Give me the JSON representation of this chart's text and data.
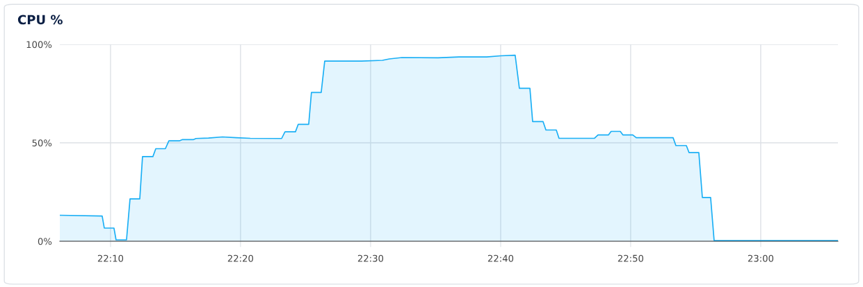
{
  "chart_data": {
    "type": "area",
    "title": "CPU %",
    "x": [
      22.1017,
      22.156,
      22.1587,
      22.1711,
      22.1738,
      22.1872,
      22.1917,
      22.2042,
      22.2077,
      22.221,
      22.2247,
      22.237,
      22.2415,
      22.2548,
      22.2585,
      22.2727,
      22.2763,
      22.2923,
      22.3102,
      22.328,
      22.3458,
      22.386,
      22.3903,
      22.4037,
      22.4073,
      22.4207,
      22.4242,
      22.4367,
      22.4412,
      22.4883,
      22.5152,
      22.524,
      22.5402,
      22.5865,
      22.6132,
      22.6488,
      22.6667,
      22.6853,
      22.6907,
      22.7042,
      22.7077,
      22.721,
      22.7247,
      22.738,
      22.7415,
      22.787,
      22.7915,
      22.8048,
      22.8083,
      22.82,
      22.8235,
      22.836,
      22.8405,
      22.8877,
      22.8913,
      22.9047,
      22.9082,
      22.9207,
      22.9252,
      22.9358,
      22.9403,
      23.099
    ],
    "series": [
      {
        "color": "#1aaff5",
        "values": [
          13.2,
          12.8,
          6.7,
          6.7,
          0.7,
          0.7,
          21.5,
          21.5,
          43,
          43,
          47,
          47,
          51,
          51,
          51.6,
          51.6,
          52.2,
          52.4,
          53,
          52.6,
          52.3,
          52.2,
          55.6,
          55.6,
          59.4,
          59.4,
          75.6,
          75.6,
          91.5,
          91.5,
          91.9,
          92.6,
          93.3,
          93.2,
          93.6,
          93.6,
          94.2,
          94.5,
          77.7,
          77.7,
          60.8,
          60.8,
          56.5,
          56.5,
          52.3,
          52.3,
          54,
          54,
          55.8,
          55.8,
          54,
          54,
          52.6,
          52.6,
          48.6,
          48.6,
          45,
          45,
          22.2,
          22.2,
          0.3,
          0.3
        ]
      }
    ],
    "xlim": [
      22.1017,
      23.099
    ],
    "xticks": [
      {
        "value": 22.1667,
        "label": "22:10"
      },
      {
        "value": 22.3333,
        "label": "22:20"
      },
      {
        "value": 22.5,
        "label": "22:30"
      },
      {
        "value": 22.6667,
        "label": "22:40"
      },
      {
        "value": 22.8333,
        "label": "22:50"
      },
      {
        "value": 23.0,
        "label": "23:00"
      }
    ],
    "ylim": [
      0,
      100
    ],
    "yticks": [
      {
        "value": 0,
        "label": "0%"
      },
      {
        "value": 50,
        "label": "50%"
      },
      {
        "value": 100,
        "label": "100%"
      }
    ],
    "grid": true,
    "marker": "none",
    "line_style": "solid"
  }
}
